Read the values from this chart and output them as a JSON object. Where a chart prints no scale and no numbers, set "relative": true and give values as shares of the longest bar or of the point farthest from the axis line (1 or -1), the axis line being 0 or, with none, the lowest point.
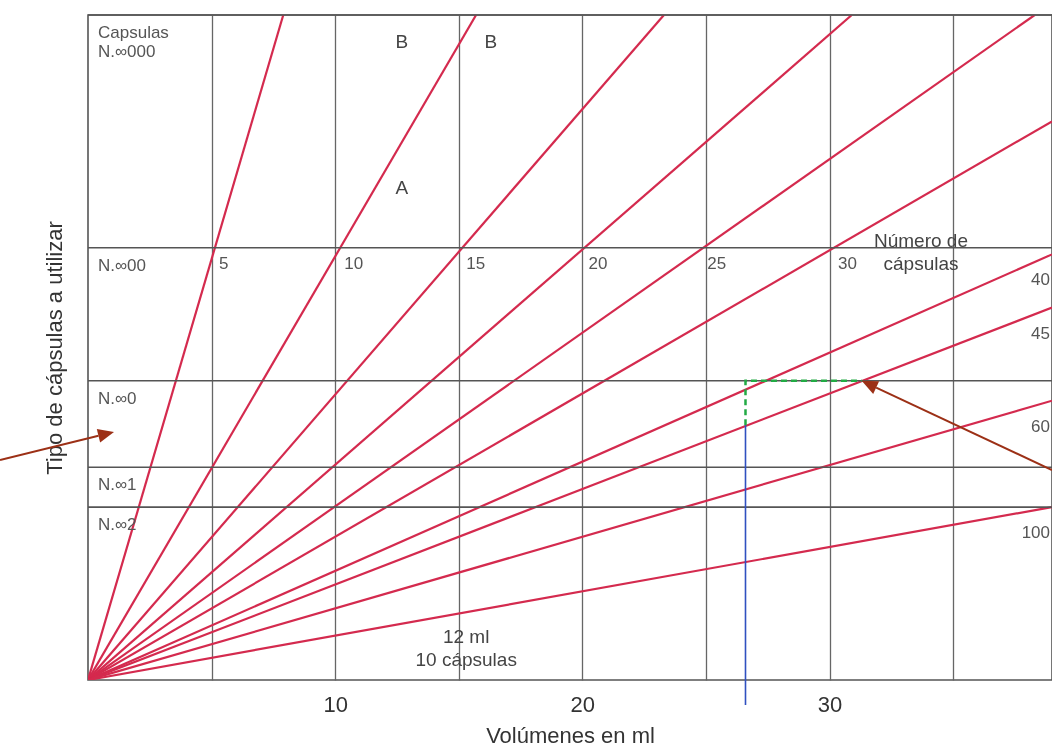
{
  "chart_data": {
    "type": "line",
    "relative": true,
    "xlabel": "Volúmenes en ml",
    "ylabel": "Tipo de cápsulas a utilizar",
    "xlim": [
      0,
      39
    ],
    "xticks": [
      {
        "value": 5,
        "label": null
      },
      10,
      {
        "value": 15,
        "label": null
      },
      20,
      {
        "value": 25,
        "label": null
      },
      30,
      {
        "value": 35,
        "label": null
      }
    ],
    "grid": "x",
    "marker": "none",
    "line_style": "solid",
    "series": [
      {
        "name": "5",
        "color": "#d42a4e",
        "x": [
          0,
          7.9
        ],
        "values": [
          0,
          1
        ]
      },
      {
        "name": "10",
        "color": "#d42a4e",
        "x": [
          0,
          15.7
        ],
        "values": [
          0,
          1
        ]
      },
      {
        "name": "15",
        "color": "#d42a4e",
        "x": [
          0,
          23.3
        ],
        "values": [
          0,
          1
        ]
      },
      {
        "name": "20",
        "color": "#d42a4e",
        "x": [
          0,
          30.9
        ],
        "values": [
          0,
          1
        ]
      },
      {
        "name": "25",
        "color": "#d42a4e",
        "x": [
          0,
          38.3
        ],
        "values": [
          0,
          1
        ]
      },
      {
        "name": "30",
        "color": "#d42a4e",
        "x": [
          0,
          39
        ],
        "values": [
          0,
          0.84
        ]
      },
      {
        "name": "40",
        "color": "#d42a4e",
        "x": [
          0,
          39
        ],
        "values": [
          0,
          0.64
        ]
      },
      {
        "name": "45",
        "color": "#d42a4e",
        "x": [
          0,
          39
        ],
        "values": [
          0,
          0.56
        ]
      },
      {
        "name": "60",
        "color": "#d42a4e",
        "x": [
          0,
          39
        ],
        "values": [
          0,
          0.42
        ]
      },
      {
        "name": "100",
        "color": "#d42a4e",
        "x": [
          0,
          39
        ],
        "values": [
          0,
          0.26
        ]
      }
    ],
    "ref_lines": [
      {
        "axis": "y",
        "value": 0.65,
        "label": "N.∞00",
        "color": "#555555"
      },
      {
        "axis": "y",
        "value": 1,
        "label": "Capsulas N.∞000",
        "color": "#555555"
      },
      {
        "axis": "y",
        "value": 0.45,
        "label": "N.∞0",
        "color": "#555555"
      },
      {
        "axis": "y",
        "value": 0.32,
        "label": "N.∞1",
        "color": "#555555"
      },
      {
        "axis": "y",
        "value": 0.26,
        "label": "N.∞2",
        "color": "#555555"
      }
    ],
    "annotations": [
      "A",
      "B",
      "B",
      "Número de",
      "cápsulas",
      "12 ml",
      "10 cápsulas"
    ]
  }
}
